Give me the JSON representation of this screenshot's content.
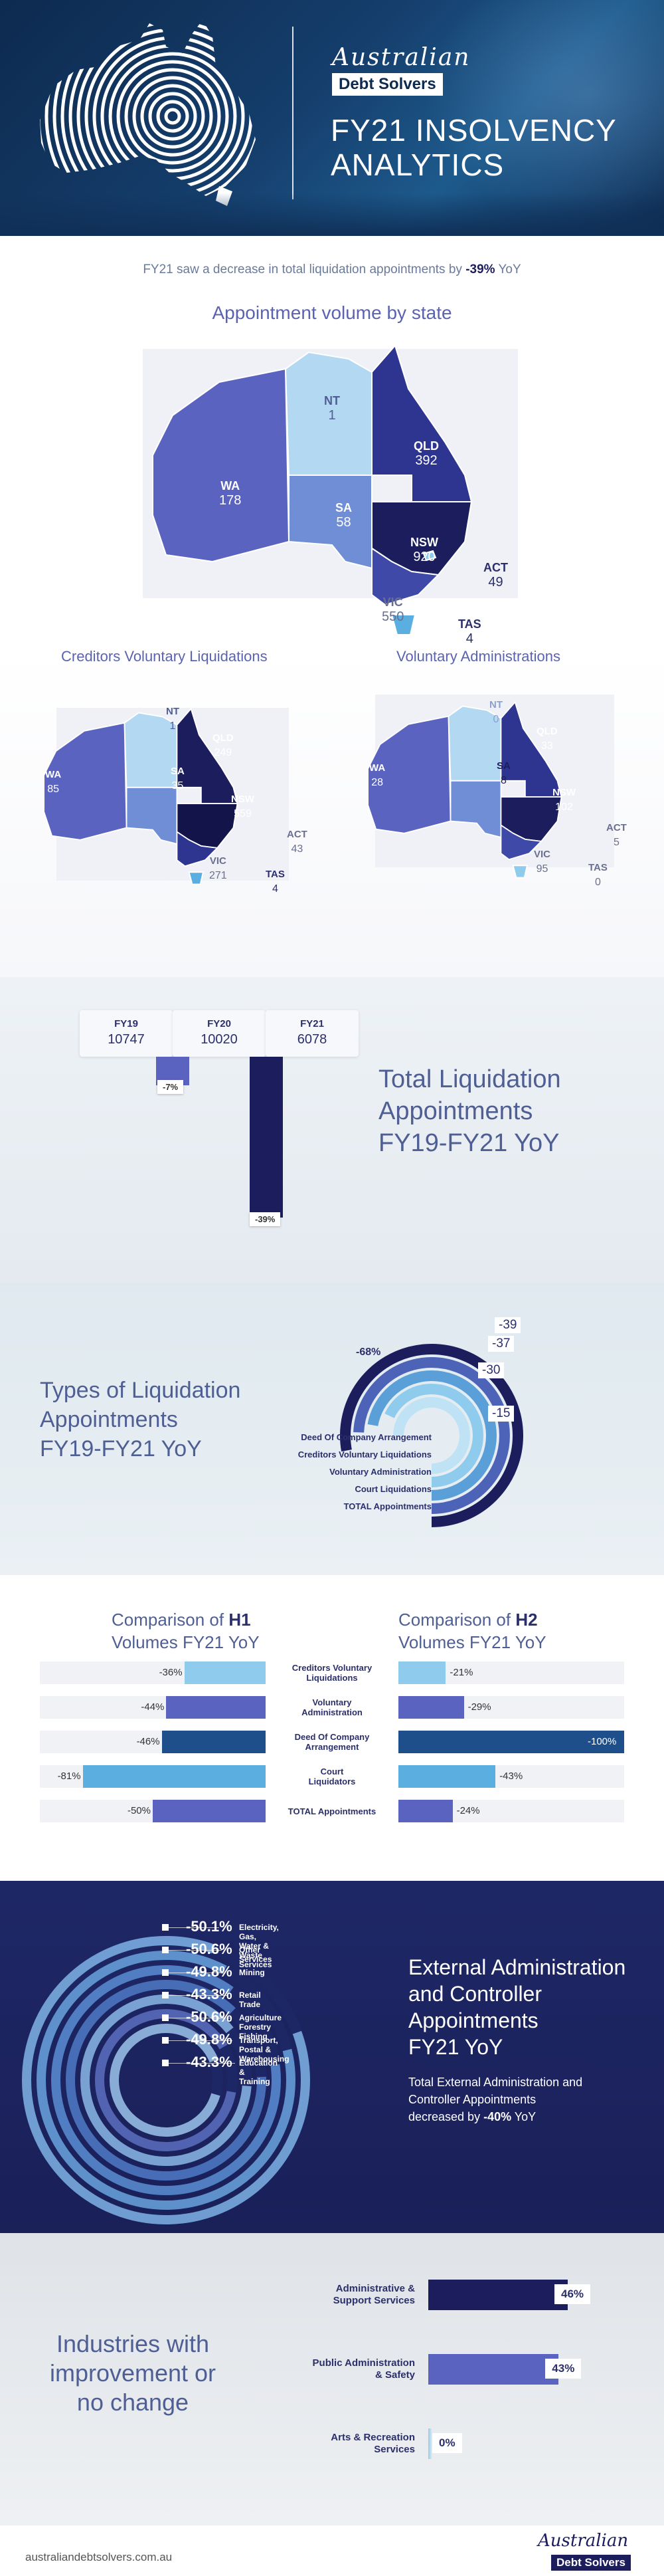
{
  "hero": {
    "brand_script": "Australian",
    "brand_name": "Debt Solvers",
    "title_line1": "FY21 INSOLVENCY",
    "title_line2": "ANALYTICS"
  },
  "intro": {
    "text_before": "FY21 saw a decrease in total liquidation appointments by ",
    "highlight": "-39%",
    "text_after": " YoY"
  },
  "state_map": {
    "title": "Appointment volume by state",
    "states": [
      {
        "code": "WA",
        "value": "178"
      },
      {
        "code": "NT",
        "value": "1"
      },
      {
        "code": "QLD",
        "value": "392"
      },
      {
        "code": "SA",
        "value": "58"
      },
      {
        "code": "NSW",
        "value": "920"
      },
      {
        "code": "ACT",
        "value": "49"
      },
      {
        "code": "VIC",
        "value": "550"
      },
      {
        "code": "TAS",
        "value": "4"
      }
    ]
  },
  "cvl_map": {
    "title": "Creditors Voluntary Liquidations",
    "states": [
      {
        "code": "WA",
        "value": "85"
      },
      {
        "code": "NT",
        "value": "1"
      },
      {
        "code": "QLD",
        "value": "249"
      },
      {
        "code": "SA",
        "value": "35"
      },
      {
        "code": "NSW",
        "value": "559"
      },
      {
        "code": "ACT",
        "value": "43"
      },
      {
        "code": "VIC",
        "value": "271"
      },
      {
        "code": "TAS",
        "value": "4"
      }
    ]
  },
  "va_map": {
    "title": "Voluntary Administrations",
    "states": [
      {
        "code": "WA",
        "value": "28"
      },
      {
        "code": "NT",
        "value": "0"
      },
      {
        "code": "QLD",
        "value": "33"
      },
      {
        "code": "SA",
        "value": "8"
      },
      {
        "code": "NSW",
        "value": "102"
      },
      {
        "code": "ACT",
        "value": "5"
      },
      {
        "code": "VIC",
        "value": "95"
      },
      {
        "code": "TAS",
        "value": "0"
      }
    ]
  },
  "totals": {
    "title_line1": "Total Liquidation",
    "title_line2": "Appointments",
    "title_line3": "FY19-FY21 YoY",
    "years": [
      {
        "fy": "FY19",
        "value": "10747"
      },
      {
        "fy": "FY20",
        "value": "10020"
      },
      {
        "fy": "FY21",
        "value": "6078"
      }
    ],
    "changes": [
      "-7%",
      "-39%"
    ],
    "colors": {
      "light": "#5a63c0",
      "dark": "#1b1d5c"
    }
  },
  "types": {
    "title_line1": "Types of Liquidation",
    "title_line2": "Appointments",
    "title_line3": "FY19-FY21 YoY",
    "chart_data": {
      "type": "radial-bar",
      "categories": [
        "Deed Of Company Arrangement",
        "Creditors Voluntary Liquidations",
        "Voluntary Administration",
        "Court Liquidations",
        "TOTAL Appointments"
      ],
      "values": [
        -68,
        -15,
        -30,
        -37,
        -39
      ],
      "labels": [
        "-68%",
        "-15",
        "-30",
        "-37",
        "-39"
      ],
      "colors": [
        "#bfe3f5",
        "#8fcbed",
        "#5a9fd8",
        "#4c63b8",
        "#1b1d5c"
      ]
    }
  },
  "compare": {
    "h1_title_pre": "Comparison of ",
    "h1_title_bold": "H1",
    "h1_title_post": "Volumes FY21 YoY",
    "h2_title_pre": "Comparison of ",
    "h2_title_bold": "H2",
    "h2_title_post": "Volumes FY21 YoY",
    "chart_data": {
      "type": "bar",
      "categories": [
        "Creditors Voluntary Liquidations",
        "Voluntary Administration",
        "Deed Of Company Arrangement",
        "Court Liquidators",
        "TOTAL Appointments"
      ],
      "category_lines": [
        [
          "Creditors Voluntary",
          "Liquidations"
        ],
        [
          "Voluntary",
          "Administration"
        ],
        [
          "Deed Of Company",
          "Arrangement"
        ],
        [
          "Court",
          "Liquidators"
        ],
        [
          "TOTAL Appointments"
        ]
      ],
      "series": [
        {
          "name": "H1",
          "values": [
            -36,
            -44,
            -46,
            -81,
            -50
          ]
        },
        {
          "name": "H2",
          "values": [
            -21,
            -29,
            -100,
            -43,
            -24
          ]
        }
      ],
      "colors": [
        "#8fcbed",
        "#5a63c0",
        "#1e4f8a",
        "#5aafe0",
        "#5a63c0"
      ]
    }
  },
  "extadmin": {
    "title_line1": "External Administration",
    "title_line2": "and Controller",
    "title_line3": "Appointments",
    "title_line4": "FY21 YoY",
    "sub_line1": "Total External Administration and",
    "sub_line2_pre": "Controller Appointments",
    "sub_line3_pre": "decreased by ",
    "sub_highlight": "-40%",
    "sub_line3_post": " YoY",
    "chart_data": {
      "type": "radial-bar",
      "categories": [
        "Electricity, Gas, Water & Waste Services",
        "Other Services",
        "Mining",
        "Retail Trade",
        "Agriculture Forestry Fishing",
        "Transport, Postal & Warehousing",
        "Education & Training"
      ],
      "values": [
        -50.1,
        -50.6,
        -49.8,
        -43.3,
        -50.6,
        -49.8,
        -43.3
      ],
      "labels": [
        "-50.1%",
        "-50.6%",
        "-49.8%",
        "-43.3%",
        "-50.6%",
        "-49.8%",
        "-43.3%"
      ]
    }
  },
  "industries": {
    "title_line1": "Industries with",
    "title_line2": "improvement or",
    "title_line3": "no change",
    "chart_data": {
      "type": "bar",
      "categories": [
        "Administrative & Support Services",
        "Public Administration & Safety",
        "Arts & Recreation Services"
      ],
      "category_lines": [
        [
          "Administrative &",
          "Support Services"
        ],
        [
          "Public Administration",
          "& Safety"
        ],
        [
          "Arts & Recreation",
          "Services"
        ]
      ],
      "values": [
        46,
        43,
        0
      ],
      "labels": [
        "46%",
        "43%",
        "0%"
      ],
      "colors": [
        "#1b1d5c",
        "#5a63c0",
        "#8fcbed"
      ]
    }
  },
  "footer": {
    "url": "australiandebtsolvers.com.au",
    "brand_script": "Australian",
    "brand_name": "Debt Solvers"
  }
}
